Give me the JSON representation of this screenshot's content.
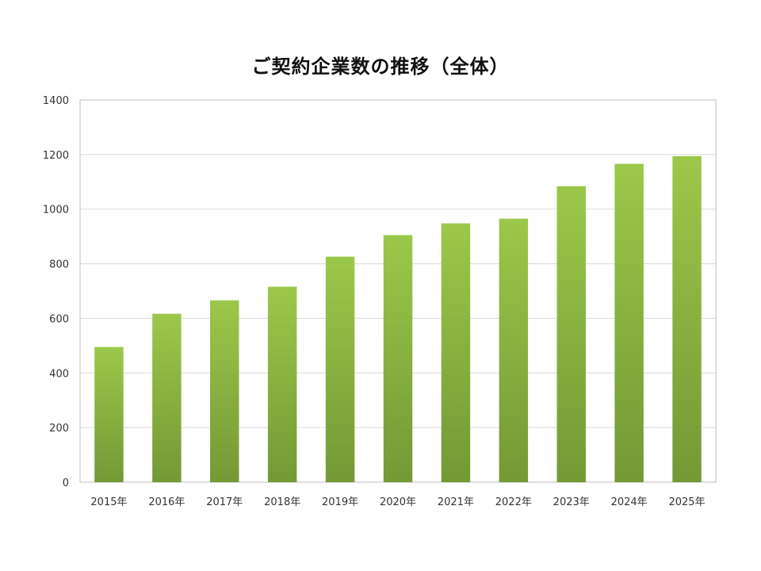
{
  "chart_data": {
    "type": "bar",
    "title": "ご契約企業数の推移（全体）",
    "categories": [
      "2015年",
      "2016年",
      "2017年",
      "2018年",
      "2019年",
      "2020年",
      "2021年",
      "2022年",
      "2023年",
      "2024年",
      "2025年"
    ],
    "values": [
      495,
      617,
      666,
      716,
      826,
      905,
      948,
      965,
      1084,
      1166,
      1194
    ],
    "ylim": [
      0,
      1400
    ],
    "yticks": [
      "0",
      "200",
      "400",
      "600",
      "800",
      "1000",
      "1200",
      "1400"
    ],
    "grid": true,
    "bar_color_top": "#9bc84a",
    "bar_color_bottom": "#739935",
    "gridline_color": "#d9d9d9",
    "axis_color": "#bfbfbf"
  }
}
